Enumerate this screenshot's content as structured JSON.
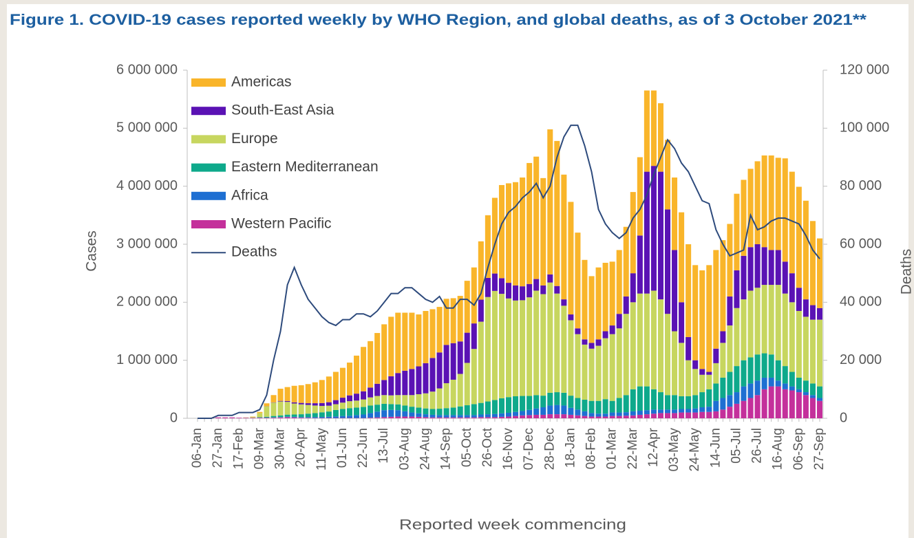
{
  "chart_data": {
    "type": "bar",
    "title": "Figure 1. COVID-19 cases reported weekly by WHO Region, and global deaths, as of 3 October 2021**",
    "ylabel": "Cases",
    "y2label": "Deaths",
    "xlabel": "Reported week commencing",
    "categories": [
      "06-Jan",
      null,
      null,
      "27-Jan",
      null,
      null,
      "17-Feb",
      null,
      null,
      "09-Mar",
      null,
      null,
      "30-Mar",
      null,
      null,
      "20-Apr",
      null,
      null,
      "11-May",
      null,
      null,
      "01-Jun",
      null,
      null,
      "22-Jun",
      null,
      null,
      "13-Jul",
      null,
      null,
      "03-Aug",
      null,
      null,
      "24-Aug",
      null,
      null,
      "14-Sep",
      null,
      null,
      "05-Oct",
      null,
      null,
      "26-Oct",
      null,
      null,
      "16-Nov",
      null,
      null,
      "07-Dec",
      null,
      null,
      "28-Dec",
      null,
      null,
      "18-Jan",
      null,
      null,
      "08-Feb",
      null,
      null,
      "01-Mar",
      null,
      null,
      "22-Mar",
      null,
      null,
      "12-Apr",
      null,
      null,
      "03-May",
      null,
      null,
      "24-May",
      null,
      null,
      "14-Jun",
      null,
      null,
      "05-Jul",
      null,
      null,
      "26-Jul",
      null,
      null,
      "16-Aug",
      null,
      null,
      "06-Sep",
      null,
      null,
      "27-Sep"
    ],
    "series": [
      {
        "name": "Americas",
        "color": "#f9b52a",
        "values": [
          0,
          0,
          0,
          0,
          0,
          0,
          0,
          0,
          5000,
          20000,
          50000,
          125000,
          210000,
          240000,
          285000,
          305000,
          330000,
          360000,
          397000,
          443000,
          487000,
          515000,
          565000,
          655000,
          765000,
          800000,
          875000,
          960000,
          1025000,
          1040000,
          1000000,
          970000,
          895000,
          900000,
          840000,
          785000,
          795000,
          775000,
          785000,
          895000,
          965000,
          1005000,
          1080000,
          1305000,
          1605000,
          1715000,
          1780000,
          1875000,
          2085000,
          2110000,
          1850000,
          2500000,
          2500000,
          2150000,
          1940000,
          1650000,
          1370000,
          1150000,
          1240000,
          1180000,
          1100000,
          1100000,
          1200000,
          1400000,
          1350000,
          1400000,
          1300000,
          1180000,
          1200000,
          1250000,
          1550000,
          1600000,
          1640000,
          1700000,
          1840000,
          1700000,
          1570000,
          1250000,
          1320000,
          1310000,
          1350000,
          1430000,
          1580000,
          1630000,
          1590000,
          1780000,
          1750000,
          1740000,
          1700000,
          1450000,
          1200000
        ]
      },
      {
        "name": "South-East Asia",
        "color": "#5a12b4",
        "values": [
          0,
          0,
          0,
          0,
          0,
          0,
          0,
          0,
          0,
          0,
          2000,
          5000,
          10000,
          15000,
          20000,
          25000,
          30000,
          40000,
          50000,
          60000,
          70000,
          85000,
          100000,
          120000,
          140000,
          170000,
          210000,
          260000,
          330000,
          380000,
          420000,
          450000,
          480000,
          520000,
          580000,
          620000,
          660000,
          630000,
          560000,
          520000,
          440000,
          380000,
          330000,
          300000,
          270000,
          270000,
          260000,
          240000,
          230000,
          200000,
          150000,
          140000,
          130000,
          110000,
          100000,
          100000,
          90000,
          100000,
          110000,
          120000,
          150000,
          250000,
          300000,
          500000,
          1000000,
          2100000,
          2150000,
          2200000,
          1800000,
          1400000,
          700000,
          400000,
          150000,
          100000,
          50000,
          250000,
          200000,
          500000,
          650000,
          750000,
          750000,
          750000,
          650000,
          600000,
          600000,
          550000,
          500000,
          400000,
          300000,
          250000,
          200000
        ]
      },
      {
        "name": "Europe",
        "color": "#c7d65f",
        "values": [
          0,
          0,
          0,
          0,
          0,
          0,
          0,
          5000,
          15000,
          70000,
          180000,
          230000,
          240000,
          220000,
          190000,
          170000,
          150000,
          130000,
          110000,
          100000,
          100000,
          110000,
          120000,
          120000,
          130000,
          140000,
          150000,
          150000,
          150000,
          160000,
          180000,
          200000,
          230000,
          260000,
          300000,
          350000,
          430000,
          480000,
          560000,
          730000,
          950000,
          1400000,
          1800000,
          1880000,
          1800000,
          1700000,
          1650000,
          1650000,
          1700000,
          1800000,
          1750000,
          1900000,
          1700000,
          1500000,
          1300000,
          1100000,
          950000,
          900000,
          950000,
          1050000,
          1150000,
          1200000,
          1400000,
          1500000,
          1600000,
          1600000,
          1700000,
          1600000,
          1400000,
          1100000,
          920000,
          620000,
          450000,
          300000,
          250000,
          350000,
          600000,
          800000,
          1000000,
          1050000,
          1150000,
          1150000,
          1180000,
          1200000,
          1300000,
          1250000,
          1200000,
          1150000,
          1100000,
          1100000,
          1150000
        ]
      },
      {
        "name": "Eastern Mediterranean",
        "color": "#0ea98b",
        "values": [
          0,
          0,
          0,
          0,
          0,
          0,
          0,
          0,
          0,
          10000,
          15000,
          25000,
          30000,
          35000,
          40000,
          50000,
          60000,
          70000,
          80000,
          90000,
          110000,
          120000,
          130000,
          130000,
          130000,
          130000,
          120000,
          110000,
          100000,
          100000,
          100000,
          100000,
          100000,
          100000,
          100000,
          110000,
          120000,
          130000,
          150000,
          170000,
          190000,
          200000,
          220000,
          240000,
          260000,
          270000,
          270000,
          260000,
          240000,
          230000,
          200000,
          220000,
          220000,
          220000,
          210000,
          200000,
          200000,
          210000,
          220000,
          250000,
          200000,
          250000,
          295000,
          380000,
          420000,
          410000,
          350000,
          300000,
          250000,
          250000,
          220000,
          220000,
          230000,
          260000,
          300000,
          300000,
          350000,
          400000,
          450000,
          450000,
          450000,
          450000,
          420000,
          400000,
          350000,
          300000,
          250000,
          200000,
          200000,
          200000,
          200000
        ]
      },
      {
        "name": "Africa",
        "color": "#1e6fd2",
        "values": [
          0,
          0,
          0,
          0,
          0,
          0,
          0,
          0,
          0,
          0,
          1000,
          5000,
          5000,
          8000,
          10000,
          10000,
          12000,
          15000,
          18000,
          22000,
          28000,
          35000,
          40000,
          50000,
          60000,
          80000,
          100000,
          120000,
          120000,
          110000,
          90000,
          70000,
          60000,
          50000,
          45000,
          40000,
          40000,
          40000,
          40000,
          40000,
          40000,
          45000,
          50000,
          55000,
          60000,
          65000,
          70000,
          75000,
          90000,
          110000,
          130000,
          150000,
          160000,
          150000,
          120000,
          100000,
          80000,
          60000,
          50000,
          50000,
          60000,
          60000,
          60000,
          70000,
          70000,
          70000,
          70000,
          60000,
          60000,
          60000,
          60000,
          60000,
          70000,
          80000,
          90000,
          180000,
          200000,
          200000,
          200000,
          250000,
          250000,
          250000,
          200000,
          150000,
          100000,
          100000,
          70000,
          50000,
          50000,
          50000,
          50000
        ]
      },
      {
        "name": "Western Pacific",
        "color": "#c4309b",
        "values": [
          0,
          1000,
          5000,
          15000,
          15000,
          15000,
          10000,
          10000,
          10000,
          10000,
          10000,
          10000,
          15000,
          20000,
          15000,
          10000,
          8000,
          5000,
          5000,
          5000,
          5000,
          5000,
          5000,
          5000,
          5000,
          10000,
          15000,
          20000,
          25000,
          30000,
          30000,
          30000,
          25000,
          20000,
          15000,
          15000,
          15000,
          15000,
          15000,
          15000,
          15000,
          20000,
          20000,
          20000,
          25000,
          30000,
          40000,
          50000,
          55000,
          60000,
          60000,
          70000,
          70000,
          70000,
          60000,
          50000,
          40000,
          30000,
          30000,
          30000,
          40000,
          40000,
          45000,
          50000,
          60000,
          70000,
          80000,
          90000,
          90000,
          90000,
          100000,
          100000,
          100000,
          110000,
          110000,
          120000,
          150000,
          200000,
          250000,
          300000,
          350000,
          400000,
          500000,
          550000,
          550000,
          500000,
          480000,
          450000,
          400000,
          350000,
          300000
        ]
      },
      {
        "name": "Deaths",
        "color": "#2d4a7c",
        "type": "line",
        "axis": "y2",
        "values": [
          0,
          0,
          0,
          1000,
          1000,
          1000,
          2000,
          2000,
          2000,
          3000,
          8000,
          20000,
          30000,
          46000,
          52000,
          46000,
          41000,
          38000,
          35000,
          33000,
          32000,
          34000,
          34000,
          36000,
          36000,
          35000,
          37000,
          40000,
          43000,
          43000,
          45000,
          45000,
          43000,
          41000,
          40000,
          42000,
          38000,
          38000,
          41000,
          41000,
          39000,
          43000,
          52000,
          60000,
          67000,
          71000,
          73000,
          76000,
          78000,
          81000,
          76000,
          80000,
          90000,
          97000,
          101000,
          101000,
          94000,
          85000,
          72000,
          67000,
          64000,
          62000,
          64000,
          69000,
          72000,
          77000,
          84000,
          90000,
          96000,
          93000,
          88000,
          85000,
          80000,
          75000,
          74000,
          65000,
          60000,
          56000,
          57000,
          58000,
          70000,
          65000,
          66000,
          68000,
          69000,
          69000,
          68000,
          67000,
          63000,
          58000,
          55000
        ]
      }
    ],
    "ylim": [
      0,
      6000000
    ],
    "yticks": [
      0,
      {
        "value": 1000000,
        "label": "1 000 000"
      },
      {
        "value": 2000000,
        "label": "2 000 000"
      },
      {
        "value": 3000000,
        "label": "3 000 000"
      },
      {
        "value": 4000000,
        "label": "4 000 000"
      },
      {
        "value": 5000000,
        "label": "5 000 000"
      },
      {
        "value": 6000000,
        "label": "6 000 000"
      }
    ],
    "y2lim": [
      0,
      120000
    ],
    "y2ticks": [
      0,
      {
        "value": 20000,
        "label": "20 000"
      },
      {
        "value": 40000,
        "label": "40 000"
      },
      {
        "value": 60000,
        "label": "60 000"
      },
      {
        "value": 80000,
        "label": "80 000"
      },
      {
        "value": 100000,
        "label": "100 000"
      },
      {
        "value": 120000,
        "label": "120 000"
      }
    ],
    "legend": "upper left"
  }
}
